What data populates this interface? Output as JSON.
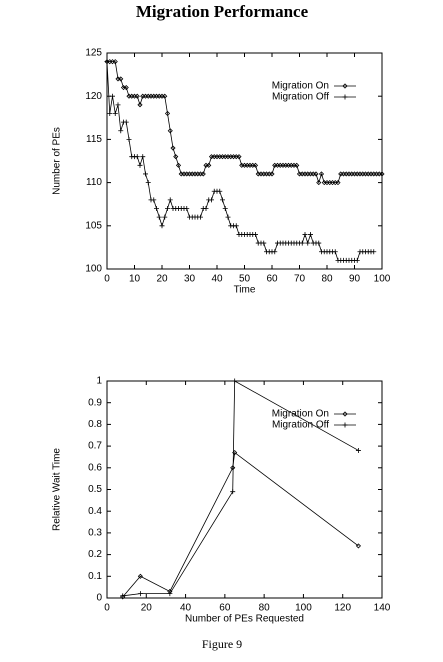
{
  "chart_data": [
    {
      "type": "line",
      "title": "Migration Performance",
      "x_label": "Time",
      "y_label": "Number of PEs",
      "x": [
        0,
        1,
        2,
        3,
        4,
        5,
        6,
        7,
        8,
        9,
        10,
        11,
        12,
        13,
        14,
        15,
        16,
        17,
        18,
        19,
        20,
        21,
        22,
        23,
        24,
        25,
        26,
        27,
        28,
        29,
        30,
        31,
        32,
        33,
        34,
        35,
        36,
        37,
        38,
        39,
        40,
        41,
        42,
        43,
        44,
        45,
        46,
        47,
        48,
        49,
        50,
        51,
        52,
        53,
        54,
        55,
        56,
        57,
        58,
        59,
        60,
        61,
        62,
        63,
        64,
        65,
        66,
        67,
        68,
        69,
        70,
        71,
        72,
        73,
        74,
        75,
        76,
        77,
        78,
        79,
        80,
        81,
        82,
        83,
        84,
        85,
        86,
        87,
        88,
        89,
        90,
        91,
        92,
        93,
        94,
        95,
        96,
        97,
        98,
        99,
        100
      ],
      "series": [
        {
          "name": "Migration On",
          "color": "#000000",
          "marker": "diamond",
          "values": [
            124,
            124,
            124,
            124,
            122,
            122,
            121,
            121,
            120,
            120,
            120,
            120,
            119,
            120,
            120,
            120,
            120,
            120,
            120,
            120,
            120,
            120,
            118,
            116,
            114,
            113,
            112,
            111,
            111,
            111,
            111,
            111,
            111,
            111,
            111,
            111,
            112,
            112,
            113,
            113,
            113,
            113,
            113,
            113,
            113,
            113,
            113,
            113,
            113,
            112,
            112,
            112,
            112,
            112,
            112,
            111,
            111,
            111,
            111,
            111,
            111,
            112,
            112,
            112,
            112,
            112,
            112,
            112,
            112,
            112,
            111,
            111,
            111,
            111,
            111,
            111,
            111,
            110,
            111,
            110,
            110,
            110,
            110,
            110,
            110,
            111,
            111,
            111,
            111,
            111,
            111,
            111,
            111,
            111,
            111,
            111,
            111,
            111,
            111,
            111,
            111
          ]
        },
        {
          "name": "Migration Off",
          "color": "#000000",
          "marker": "plus",
          "values": [
            124,
            118,
            120,
            118,
            119,
            116,
            117,
            117,
            115,
            113,
            113,
            113,
            112,
            113,
            111,
            110,
            108,
            108,
            107,
            106,
            105,
            106,
            107,
            108,
            107,
            107,
            107,
            107,
            107,
            107,
            106,
            106,
            106,
            106,
            106,
            107,
            107,
            108,
            108,
            109,
            109,
            109,
            108,
            107,
            106,
            105,
            105,
            105,
            104,
            104,
            104,
            104,
            104,
            104,
            104,
            103,
            103,
            103,
            102,
            102,
            102,
            102,
            103,
            103,
            103,
            103,
            103,
            103,
            103,
            103,
            103,
            103,
            104,
            103,
            104,
            103,
            103,
            103,
            102,
            102,
            102,
            102,
            102,
            102,
            101,
            101,
            101,
            101,
            101,
            101,
            101,
            101,
            102,
            102,
            102,
            102,
            102,
            102,
            null,
            null,
            null
          ]
        }
      ],
      "xlim": [
        0,
        100
      ],
      "xticks": [
        0,
        10,
        20,
        30,
        40,
        50,
        60,
        70,
        80,
        90,
        100
      ],
      "ylim": [
        100,
        125
      ],
      "yticks": [
        100,
        105,
        110,
        115,
        120,
        125
      ],
      "legend": "top-right"
    },
    {
      "type": "line",
      "x_label": "Number of PEs Requested",
      "y_label": "Relative Wait Time",
      "x": [
        8,
        17,
        32,
        64,
        65,
        128
      ],
      "series": [
        {
          "name": "Migration On",
          "color": "#000000",
          "marker": "diamond",
          "values": [
            0.005,
            0.1,
            0.03,
            0.6,
            0.67,
            0.24
          ]
        },
        {
          "name": "Migration Off",
          "color": "#000000",
          "marker": "plus",
          "values": [
            0.01,
            0.02,
            0.02,
            0.49,
            1.0,
            0.68
          ]
        }
      ],
      "xlim": [
        0,
        140
      ],
      "xticks": [
        0,
        20,
        40,
        60,
        80,
        100,
        120,
        140
      ],
      "ylim": [
        0,
        1
      ],
      "yticks": [
        0,
        0.1,
        0.2,
        0.3,
        0.4,
        0.5,
        0.6,
        0.7,
        0.8,
        0.9,
        1
      ],
      "legend": "top-right"
    }
  ],
  "caption": "Figure 9"
}
